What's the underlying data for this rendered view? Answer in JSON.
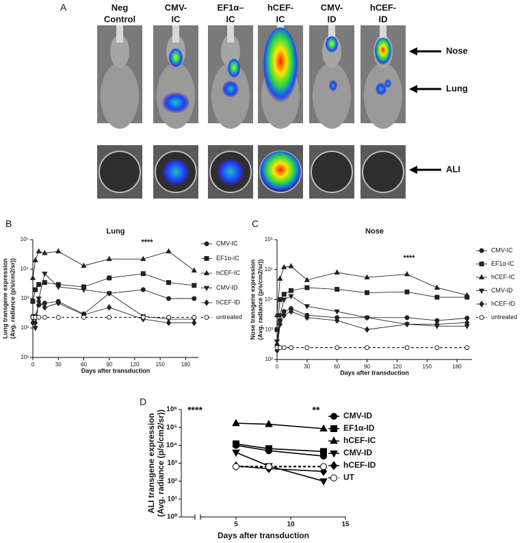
{
  "panel_a": {
    "label": "A",
    "columns": [
      [
        "Neg",
        "Control"
      ],
      [
        "CMV-",
        "IC"
      ],
      [
        "EF1α–",
        "IC"
      ],
      [
        "hCEF-",
        "IC"
      ],
      [
        "CMV-",
        "ID"
      ],
      [
        "hCEF-",
        "ID"
      ]
    ],
    "arrows": [
      "Nose",
      "Lung",
      "ALI"
    ]
  },
  "chart_data": [
    {
      "type": "line",
      "panel_label": "B",
      "title": "Lung",
      "ylabel": [
        "Lung transgene expression",
        "(Avg. radiance (p/s/cm2/sr))"
      ],
      "xlabel": "Days after transduction",
      "log_scale": true,
      "annotations": [
        "****"
      ],
      "x": [
        0,
        3,
        7,
        14,
        30,
        60,
        90,
        130,
        160,
        190
      ],
      "xlim": [
        0,
        195
      ],
      "xticks": [
        0,
        30,
        60,
        90,
        120,
        150,
        180
      ],
      "ylim": [
        10,
        100000
      ],
      "yticks": [
        {
          "value": 10,
          "label": "10¹"
        },
        {
          "value": 100,
          "label": "10²"
        },
        {
          "value": 1000,
          "label": "10³"
        },
        {
          "value": 10000,
          "label": "10⁴"
        },
        {
          "value": 100000,
          "label": "10⁵"
        }
      ],
      "series": [
        {
          "name": "CMV-IC",
          "marker": "circle",
          "color": "#222222",
          "values": [
            250,
            250,
            600,
            700,
            800,
            300,
            1500,
            2000,
            1000,
            1000
          ]
        },
        {
          "name": "EF1α-IC",
          "marker": "square",
          "color": "#222222",
          "values": [
            800,
            2000,
            3000,
            3500,
            3000,
            2500,
            5000,
            7000,
            3500,
            2800
          ]
        },
        {
          "name": "hCEF-IC",
          "marker": "triangle",
          "color": "#222222",
          "values": [
            5000,
            20000,
            40000,
            35000,
            40000,
            13000,
            22000,
            22000,
            40000,
            9000
          ]
        },
        {
          "name": "CMV-ID",
          "marker": "triangle-down",
          "color": "#222222",
          "values": [
            200,
            100,
            1000,
            7000,
            2500,
            2000,
            1500,
            250,
            200,
            200
          ]
        },
        {
          "name": "hCEF-ID",
          "marker": "diamond",
          "color": "#222222",
          "values": [
            150,
            150,
            800,
            500,
            700,
            280,
            500,
            200,
            150,
            150
          ]
        },
        {
          "name": "untreated",
          "marker": "open-circle",
          "dashed": true,
          "color": "#222222",
          "values": [
            230,
            230,
            230,
            230,
            230,
            230,
            230,
            230,
            230,
            230
          ]
        }
      ]
    },
    {
      "type": "line",
      "panel_label": "C",
      "title": "Nose",
      "ylabel": [
        "Nose transgene expression",
        "(Avg. radiance (p/s/cm2/sr))"
      ],
      "xlabel": "Days after transduction",
      "log_scale": true,
      "annotations": [
        "****"
      ],
      "x": [
        0,
        3,
        7,
        14,
        30,
        60,
        90,
        130,
        160,
        190
      ],
      "xlim": [
        0,
        195
      ],
      "xticks": [
        0,
        30,
        60,
        90,
        120,
        150,
        180
      ],
      "ylim": [
        100,
        1000000
      ],
      "yticks": [
        {
          "value": 100,
          "label": "10²"
        },
        {
          "value": 1000,
          "label": "10³"
        },
        {
          "value": 10000,
          "label": "10⁴"
        },
        {
          "value": 100000,
          "label": "10⁵"
        },
        {
          "value": 1000000,
          "label": "10⁶"
        }
      ],
      "series": [
        {
          "name": "CMV-IC",
          "marker": "circle",
          "color": "#222222",
          "values": [
            300,
            2000,
            4000,
            5000,
            3000,
            2500,
            2500,
            2500,
            2000,
            2400
          ]
        },
        {
          "name": "EF1α-IC",
          "marker": "square",
          "color": "#222222",
          "values": [
            1000,
            10000,
            15000,
            20000,
            25000,
            22000,
            17000,
            18000,
            12000,
            12000
          ]
        },
        {
          "name": "hCEF-IC",
          "marker": "triangle",
          "color": "#222222",
          "values": [
            3000,
            50000,
            120000,
            130000,
            45000,
            80000,
            55000,
            70000,
            25000,
            14000
          ]
        },
        {
          "name": "CMV-ID",
          "marker": "triangle-down",
          "color": "#222222",
          "values": [
            400,
            3000,
            10000,
            13000,
            6000,
            4000,
            2500,
            1500,
            1300,
            1300
          ]
        },
        {
          "name": "hCEF-ID",
          "marker": "diamond",
          "color": "#222222",
          "values": [
            200,
            1500,
            3000,
            4000,
            2500,
            2000,
            1000,
            1500,
            1500,
            1700
          ]
        },
        {
          "name": "untreated",
          "marker": "open-circle",
          "dashed": true,
          "color": "#222222",
          "values": [
            250,
            250,
            250,
            250,
            250,
            250,
            250,
            250,
            250,
            250
          ]
        }
      ]
    },
    {
      "type": "line",
      "panel_label": "D",
      "ylabel": [
        "ALI transgene expression",
        "(Avg. radiance (p/s/cm2/sr))"
      ],
      "xlabel": "Days after transduction",
      "log_scale": true,
      "annotations": [
        "****",
        "**"
      ],
      "x": [
        5,
        8,
        13
      ],
      "xlim": [
        0,
        15
      ],
      "xticks": [
        5,
        10,
        15
      ],
      "ylim": [
        1,
        1000000
      ],
      "yticks": [
        {
          "value": 1,
          "label": "10⁰"
        },
        {
          "value": 10,
          "label": "10¹"
        },
        {
          "value": 100,
          "label": "10²"
        },
        {
          "value": 1000,
          "label": "10³"
        },
        {
          "value": 10000,
          "label": "10⁴"
        },
        {
          "value": 100000,
          "label": "10⁵"
        },
        {
          "value": 1000000,
          "label": "10⁶"
        }
      ],
      "series": [
        {
          "name": "CMV-ID",
          "marker": "circle",
          "color": "#000000",
          "values": [
            10000,
            5000,
            2500
          ]
        },
        {
          "name": "EF1α-ID",
          "marker": "square",
          "color": "#000000",
          "values": [
            12000,
            6500,
            4500
          ]
        },
        {
          "name": "hCEF-IC",
          "marker": "triangle",
          "color": "#000000",
          "values": [
            170000,
            150000,
            85000
          ]
        },
        {
          "name": "CMV-ID",
          "marker": "triangle-down",
          "color": "#000000",
          "values": [
            4000,
            700,
            100
          ]
        },
        {
          "name": "hCEF-ID",
          "marker": "diamond",
          "color": "#000000",
          "values": [
            700,
            500,
            350
          ]
        },
        {
          "name": "UT",
          "marker": "open-circle",
          "dashed": true,
          "color": "#000000",
          "values": [
            650,
            650,
            650
          ]
        }
      ]
    }
  ]
}
